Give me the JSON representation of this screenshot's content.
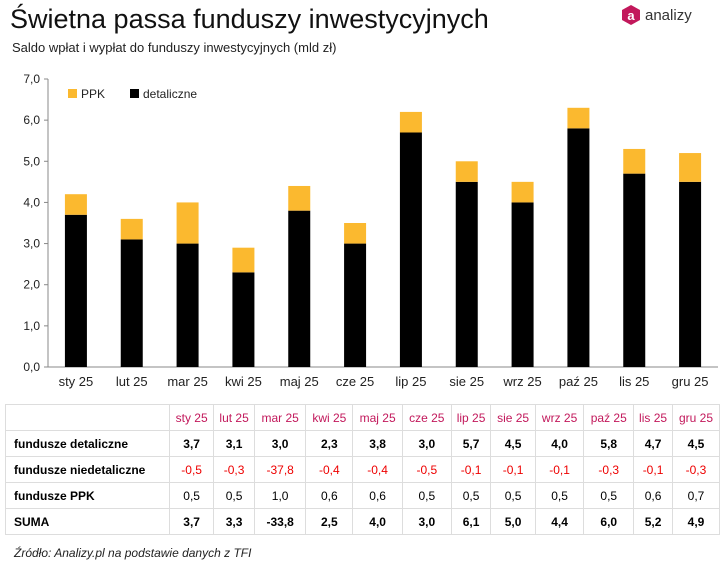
{
  "title": "Świetna passa funduszy inwestycyjnych",
  "subtitle": "Saldo wpłat i wypłat do funduszy inwestycyjnych (mld zł)",
  "logo": {
    "text": "analizy",
    "mark": "a",
    "color": "#c2185b"
  },
  "chart_data": {
    "type": "bar",
    "stacked": true,
    "categories": [
      "sty 25",
      "lut 25",
      "mar 25",
      "kwi 25",
      "maj 25",
      "cze 25",
      "lip 25",
      "sie 25",
      "wrz 25",
      "paź 25",
      "lis 25",
      "gru 25"
    ],
    "series": [
      {
        "name": "detaliczne",
        "color": "#000000",
        "values": [
          3.7,
          3.1,
          3.0,
          2.3,
          3.8,
          3.0,
          5.7,
          4.5,
          4.0,
          5.8,
          4.7,
          4.5
        ]
      },
      {
        "name": "PPK",
        "color": "#fbb92f",
        "values": [
          0.5,
          0.5,
          1.0,
          0.6,
          0.6,
          0.5,
          0.5,
          0.5,
          0.5,
          0.5,
          0.6,
          0.7
        ]
      }
    ],
    "ylim": [
      0,
      7
    ],
    "yticks": [
      "0,0",
      "1,0",
      "2,0",
      "3,0",
      "4,0",
      "5,0",
      "6,0",
      "7,0"
    ],
    "grid": false,
    "legend": "top-left"
  },
  "table": {
    "months": [
      "sty 25",
      "lut 25",
      "mar 25",
      "kwi 25",
      "maj 25",
      "cze 25",
      "lip 25",
      "sie 25",
      "wrz 25",
      "paź 25",
      "lis 25",
      "gru 25"
    ],
    "rows": [
      {
        "label": "fundusze detaliczne",
        "style": "b",
        "values": [
          "3,7",
          "3,1",
          "3,0",
          "2,3",
          "3,8",
          "3,0",
          "5,7",
          "4,5",
          "4,0",
          "5,8",
          "4,7",
          "4,5"
        ]
      },
      {
        "label": "fundusze niedetaliczne",
        "style": "r",
        "values": [
          "-0,5",
          "-0,3",
          "-37,8",
          "-0,4",
          "-0,4",
          "-0,5",
          "-0,1",
          "-0,1",
          "-0,1",
          "-0,3",
          "-0,1",
          "-0,3"
        ]
      },
      {
        "label": "fundusze PPK",
        "style": "",
        "values": [
          "0,5",
          "0,5",
          "1,0",
          "0,6",
          "0,6",
          "0,5",
          "0,5",
          "0,5",
          "0,5",
          "0,5",
          "0,6",
          "0,7"
        ]
      },
      {
        "label": "SUMA",
        "style": "b",
        "values": [
          "3,7",
          "3,3",
          "-33,8",
          "2,5",
          "4,0",
          "3,0",
          "6,1",
          "5,0",
          "4,4",
          "6,0",
          "5,2",
          "4,9"
        ]
      }
    ]
  },
  "source": "Źródło: Analizy.pl na podstawie danych z TFI"
}
